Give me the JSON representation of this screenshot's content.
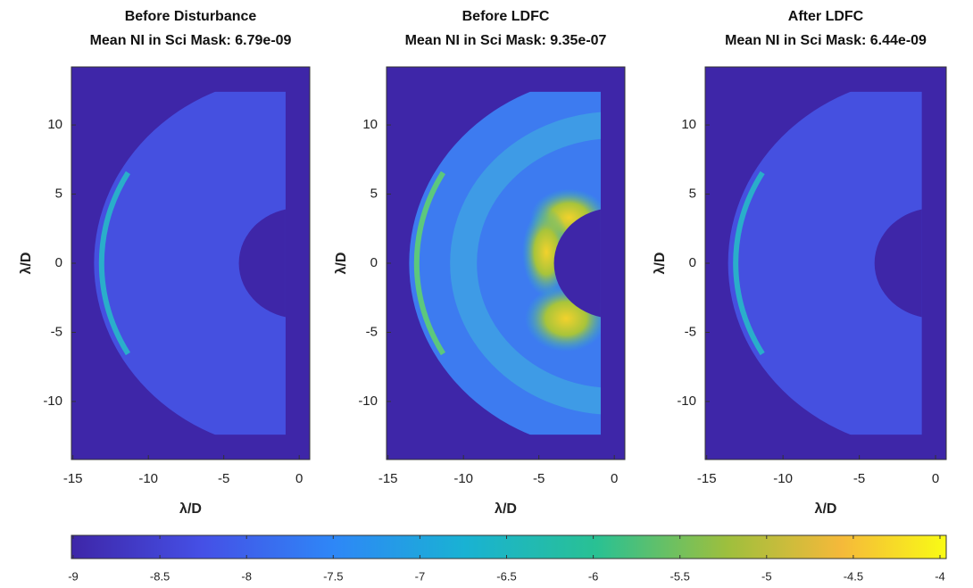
{
  "chart_data": [
    {
      "type": "heatmap",
      "title": "Before Disturbance",
      "subtitle": "Mean NI in Sci Mask: 6.79e-09",
      "xlabel": "λ/D",
      "ylabel": "λ/D",
      "xlim": [
        -15.1,
        0.7
      ],
      "xticks": [
        -15,
        -10,
        -5,
        0
      ],
      "ylim": [
        -14.2,
        14.2
      ],
      "yticks": [
        10,
        5,
        0,
        -5,
        -10
      ]
    },
    {
      "type": "heatmap",
      "title": "Before LDFC",
      "subtitle": "Mean NI in Sci Mask: 9.35e-07",
      "xlabel": "λ/D",
      "ylabel": "λ/D",
      "xlim": [
        -15.1,
        0.7
      ],
      "xticks": [
        -15,
        -10,
        -5,
        0
      ],
      "ylim": [
        -14.2,
        14.2
      ],
      "yticks": [
        10,
        5,
        0,
        -5,
        -10
      ]
    },
    {
      "type": "heatmap",
      "title": "After LDFC",
      "subtitle": "Mean NI in Sci Mask: 6.44e-09",
      "xlabel": "λ/D",
      "ylabel": "λ/D",
      "xlim": [
        -15.1,
        0.7
      ],
      "xticks": [
        -15,
        -10,
        -5,
        0
      ],
      "ylim": [
        -14.2,
        14.2
      ],
      "yticks": [
        10,
        5,
        0,
        -5,
        -10
      ]
    }
  ],
  "colorbar": {
    "clim": [
      -9,
      -4
    ],
    "ticks": [
      -9,
      -8.5,
      -8,
      -7.5,
      -7,
      -6.5,
      -6,
      -5.5,
      -5,
      -4.5,
      -4
    ]
  }
}
